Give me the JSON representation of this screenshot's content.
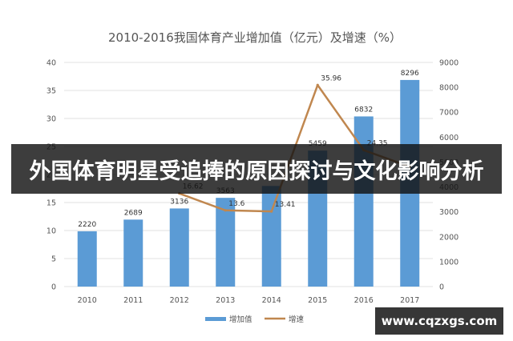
{
  "chart_data": {
    "type": "bar",
    "title": "2010-2016我国体育产业增加值（亿元）及增速（%）",
    "categories": [
      "2010",
      "2011",
      "2012",
      "2013",
      "2014",
      "2015",
      "2016",
      "2017"
    ],
    "series": [
      {
        "name": "增加值",
        "type": "bar",
        "axis": "right",
        "values": [
          2220,
          2689,
          3136,
          3563,
          4041,
          5459,
          6832,
          8296
        ],
        "labels": [
          "2220",
          "2689",
          "3136",
          "3563",
          "",
          "5459",
          "6832",
          "8296"
        ],
        "color": "#5b9bd5"
      },
      {
        "name": "增速",
        "type": "line",
        "axis": "left",
        "values": [
          null,
          null,
          16.62,
          13.6,
          13.41,
          35.96,
          24.35,
          21.4
        ],
        "labels": [
          "",
          "",
          "16.62",
          "13.6",
          "13.41",
          "35.96",
          "24.35",
          ""
        ],
        "color": "#c0874f"
      }
    ],
    "y_left": {
      "lim": [
        0,
        40
      ],
      "ticks": [
        "0",
        "5",
        "10",
        "15",
        "20",
        "25",
        "30",
        "35",
        "40"
      ]
    },
    "y_right": {
      "lim": [
        0,
        9000
      ],
      "ticks": [
        "0",
        "1000",
        "2000",
        "3000",
        "4000",
        "5000",
        "6000",
        "7000",
        "8000",
        "9000"
      ]
    },
    "grid": true,
    "legend": "bottom"
  },
  "banner": {
    "text": "外国体育明星受追捧的原因探讨与文化影响分析"
  },
  "watermark": {
    "text": "www.cqzxgs.com"
  }
}
